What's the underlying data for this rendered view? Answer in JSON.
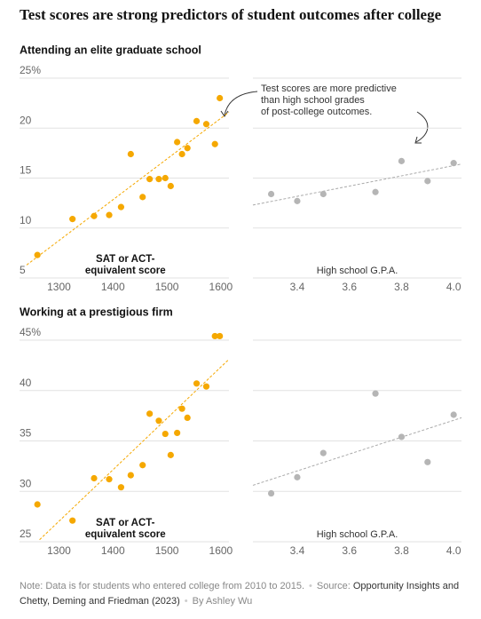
{
  "title": "Test scores are strong predictors of student outcomes after college",
  "note": "Note: Data is for students who entered college from 2010 to 2015.",
  "source_label": "Source:",
  "source": "Opportunity Insights and Chetty, Deming and Friedman (2023)",
  "byline": "By Ashley Wu",
  "chart_data": [
    {
      "type": "scatter",
      "title": "Attending an elite graduate school",
      "xlabel": [
        "SAT or ACT-",
        "equivalent score"
      ],
      "x": [
        1260,
        1325,
        1365,
        1393,
        1415,
        1433,
        1455,
        1468,
        1485,
        1497,
        1507,
        1519,
        1528,
        1538,
        1555,
        1573,
        1589,
        1598
      ],
      "values": [
        7.3,
        10.9,
        11.2,
        11.3,
        12.1,
        17.4,
        13.1,
        14.9,
        14.9,
        15.0,
        14.2,
        18.6,
        17.4,
        18.0,
        20.7,
        20.4,
        18.4,
        23.0
      ],
      "color": "#f5a800",
      "trend": {
        "x": [
          1240,
          1615
        ],
        "y": [
          6.3,
          21.6
        ]
      },
      "xlim": [
        1240,
        1615
      ],
      "xticks": [
        1300,
        1400,
        1500,
        1600
      ],
      "ylim": [
        5,
        25
      ],
      "yticks": [
        5,
        10,
        15,
        20,
        {
          "value": 25,
          "label": "25%"
        }
      ],
      "grid": true
    },
    {
      "type": "scatter",
      "xlabel": [
        "High school G.P.A."
      ],
      "sharey": true,
      "annotation": [
        "Test scores are more predictive",
        "than high school grades",
        "of post-college outcomes."
      ],
      "x": [
        3.3,
        3.4,
        3.5,
        3.7,
        3.8,
        3.9,
        4.0
      ],
      "values": [
        13.4,
        12.7,
        13.4,
        13.6,
        16.7,
        14.7,
        16.5
      ],
      "color": "#b5b5b5",
      "trend": {
        "x": [
          3.23,
          4.03
        ],
        "y": [
          12.3,
          16.4
        ]
      },
      "xlim": [
        3.23,
        4.03
      ],
      "xticks": [
        3.4,
        3.6,
        3.8,
        {
          "value": 4.0,
          "label": "4.0"
        }
      ],
      "grid": true
    },
    {
      "type": "scatter",
      "title": "Working at a prestigious firm",
      "xlabel": [
        "SAT or ACT-",
        "equivalent score"
      ],
      "x": [
        1260,
        1325,
        1365,
        1393,
        1415,
        1433,
        1455,
        1468,
        1485,
        1497,
        1507,
        1519,
        1528,
        1538,
        1555,
        1573,
        1589,
        1598
      ],
      "values": [
        28.7,
        27.1,
        31.3,
        31.2,
        30.4,
        31.6,
        32.6,
        37.7,
        37.0,
        35.7,
        33.6,
        35.8,
        38.2,
        37.3,
        40.7,
        40.4,
        45.4,
        45.4
      ],
      "color": "#f5a800",
      "trend": {
        "x": [
          1264,
          1615
        ],
        "y": [
          25.2,
          43.1
        ]
      },
      "xlim": [
        1240,
        1615
      ],
      "xticks": [
        1300,
        1400,
        1500,
        1600
      ],
      "ylim": [
        25,
        45
      ],
      "yticks": [
        25,
        30,
        35,
        40,
        {
          "value": 45,
          "label": "45%"
        }
      ],
      "grid": true
    },
    {
      "type": "scatter",
      "xlabel": [
        "High school G.P.A."
      ],
      "sharey": true,
      "x": [
        3.3,
        3.4,
        3.5,
        3.7,
        3.8,
        3.9,
        4.0
      ],
      "values": [
        29.8,
        31.4,
        33.8,
        39.7,
        35.4,
        32.9,
        37.6
      ],
      "color": "#b5b5b5",
      "trend": {
        "x": [
          3.23,
          4.03
        ],
        "y": [
          30.6,
          37.3
        ]
      },
      "xlim": [
        3.23,
        4.03
      ],
      "xticks": [
        3.4,
        3.6,
        3.8,
        {
          "value": 4.0,
          "label": "4.0"
        }
      ],
      "grid": true
    }
  ]
}
